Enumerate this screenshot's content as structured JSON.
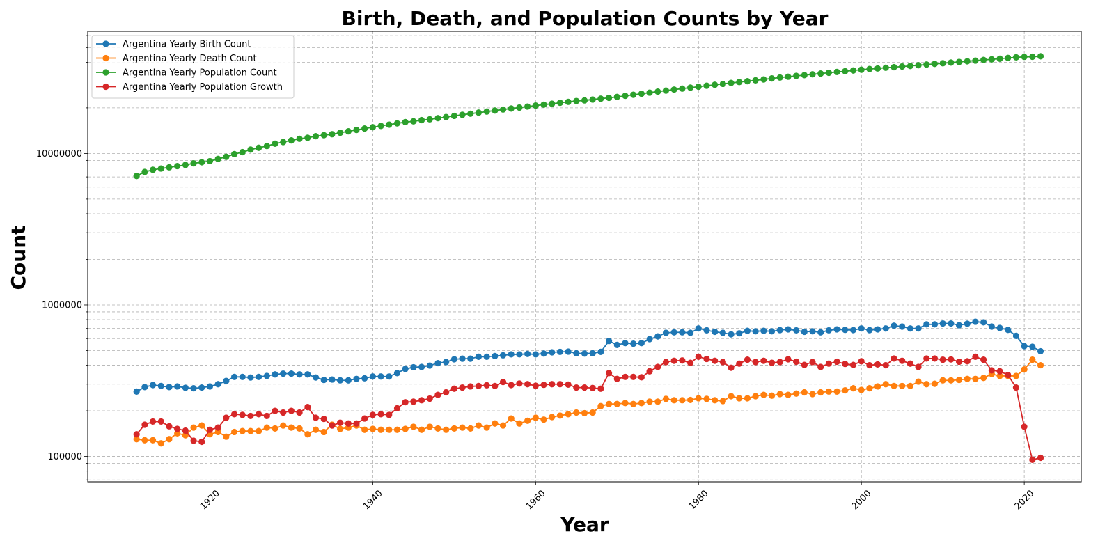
{
  "chart_data": {
    "type": "line",
    "title": "Birth, Death, and Population Counts by Year",
    "xlabel": "Year",
    "ylabel": "Count",
    "yscale": "log",
    "grid": true,
    "legend_position": "top-left",
    "xlim": [
      1905,
      2027
    ],
    "ylim": [
      68000,
      64000000
    ],
    "x_ticks": [
      1920,
      1940,
      1960,
      1980,
      2000,
      2020
    ],
    "y_ticks": [
      100000,
      1000000,
      10000000
    ],
    "y_tick_labels": [
      "100000",
      "1000000",
      "10000000"
    ],
    "x": [
      1911,
      1912,
      1913,
      1914,
      1915,
      1916,
      1917,
      1918,
      1919,
      1920,
      1921,
      1922,
      1923,
      1924,
      1925,
      1926,
      1927,
      1928,
      1929,
      1930,
      1931,
      1932,
      1933,
      1934,
      1935,
      1936,
      1937,
      1938,
      1939,
      1940,
      1941,
      1942,
      1943,
      1944,
      1945,
      1946,
      1947,
      1948,
      1949,
      1950,
      1951,
      1952,
      1953,
      1954,
      1955,
      1956,
      1957,
      1958,
      1959,
      1960,
      1961,
      1962,
      1963,
      1964,
      1965,
      1966,
      1967,
      1968,
      1969,
      1970,
      1971,
      1972,
      1973,
      1974,
      1975,
      1976,
      1977,
      1978,
      1979,
      1980,
      1981,
      1982,
      1983,
      1984,
      1985,
      1986,
      1987,
      1988,
      1989,
      1990,
      1991,
      1992,
      1993,
      1994,
      1995,
      1996,
      1997,
      1998,
      1999,
      2000,
      2001,
      2002,
      2003,
      2004,
      2005,
      2006,
      2007,
      2008,
      2009,
      2010,
      2011,
      2012,
      2013,
      2014,
      2015,
      2016,
      2017,
      2018,
      2019,
      2020,
      2021,
      2022
    ],
    "series": [
      {
        "name": "Argentina Yearly Birth Count",
        "color": "#1f77b4",
        "values": [
          268000,
          287000,
          296000,
          292000,
          287000,
          290000,
          284000,
          282000,
          285000,
          290000,
          300000,
          315000,
          335000,
          335000,
          332000,
          335000,
          340000,
          348000,
          352000,
          352000,
          348000,
          348000,
          332000,
          320000,
          322000,
          318000,
          318000,
          325000,
          328000,
          337000,
          337000,
          337000,
          355000,
          378000,
          388000,
          390000,
          398000,
          413000,
          420000,
          438000,
          442000,
          442000,
          455000,
          455000,
          460000,
          465000,
          472000,
          472000,
          475000,
          472000,
          478000,
          487000,
          490000,
          492000,
          480000,
          478000,
          480000,
          490000,
          578000,
          545000,
          560000,
          555000,
          560000,
          595000,
          620000,
          655000,
          660000,
          660000,
          655000,
          700000,
          680000,
          665000,
          655000,
          640000,
          650000,
          675000,
          670000,
          675000,
          670000,
          682000,
          690000,
          680000,
          665000,
          670000,
          660000,
          680000,
          690000,
          685000,
          683000,
          700000,
          682000,
          690000,
          700000,
          730000,
          720000,
          700000,
          700000,
          745000,
          745000,
          755000,
          755000,
          735000,
          752000,
          775000,
          768000,
          720000,
          705000,
          685000,
          625000,
          535000,
          530000,
          495000
        ]
      },
      {
        "name": "Argentina Yearly Death Count",
        "color": "#ff7f0e",
        "values": [
          130000,
          128000,
          128000,
          122000,
          130000,
          142000,
          138000,
          155000,
          160000,
          140000,
          145000,
          135000,
          145000,
          147000,
          147000,
          147000,
          155000,
          153000,
          160000,
          155000,
          153000,
          140000,
          150000,
          145000,
          162000,
          152000,
          155000,
          160000,
          150000,
          152000,
          150000,
          150000,
          150000,
          152000,
          157000,
          150000,
          157000,
          153000,
          150000,
          153000,
          155000,
          153000,
          160000,
          155000,
          165000,
          160000,
          178000,
          165000,
          172000,
          180000,
          175000,
          182000,
          186000,
          190000,
          195000,
          193000,
          195000,
          215000,
          222000,
          222000,
          225000,
          222000,
          225000,
          230000,
          230000,
          240000,
          235000,
          235000,
          236000,
          242000,
          240000,
          235000,
          232000,
          250000,
          242000,
          242000,
          250000,
          255000,
          252000,
          258000,
          255000,
          260000,
          265000,
          258000,
          265000,
          268000,
          268000,
          273000,
          282000,
          275000,
          282000,
          290000,
          300000,
          292000,
          292000,
          292000,
          312000,
          300000,
          302000,
          318000,
          318000,
          320000,
          325000,
          325000,
          330000,
          350000,
          340000,
          340000,
          340000,
          375000,
          435000,
          400000
        ]
      },
      {
        "name": "Argentina Yearly Population Count",
        "color": "#2ca02c",
        "values": [
          7100000,
          7550000,
          7800000,
          7950000,
          8100000,
          8250000,
          8400000,
          8600000,
          8750000,
          8900000,
          9200000,
          9500000,
          9900000,
          10200000,
          10600000,
          10900000,
          11200000,
          11600000,
          11900000,
          12200000,
          12500000,
          12700000,
          13000000,
          13200000,
          13400000,
          13700000,
          14000000,
          14300000,
          14600000,
          14900000,
          15200000,
          15500000,
          15800000,
          16100000,
          16300000,
          16600000,
          16800000,
          17100000,
          17400000,
          17700000,
          18000000,
          18300000,
          18600000,
          18900000,
          19200000,
          19500000,
          19800000,
          20100000,
          20400000,
          20700000,
          21000000,
          21300000,
          21600000,
          21900000,
          22200000,
          22400000,
          22700000,
          23000000,
          23300000,
          23600000,
          24000000,
          24400000,
          24800000,
          25200000,
          25600000,
          26000000,
          26400000,
          26800000,
          27200000,
          27600000,
          28000000,
          28400000,
          28800000,
          29200000,
          29600000,
          30000000,
          30400000,
          30800000,
          31300000,
          31700000,
          32100000,
          32500000,
          32900000,
          33300000,
          33700000,
          34100000,
          34500000,
          34900000,
          35300000,
          35700000,
          36100000,
          36400000,
          36800000,
          37100000,
          37500000,
          37800000,
          38200000,
          38600000,
          39000000,
          39400000,
          39800000,
          40200000,
          40600000,
          41000000,
          41400000,
          41800000,
          42200000,
          42700000,
          43100000,
          43400000,
          43500000,
          43800000
        ]
      },
      {
        "name": "Argentina Yearly Population Growth",
        "color": "#d62728",
        "values": [
          140000,
          162000,
          170000,
          170000,
          158000,
          152000,
          148000,
          127000,
          125000,
          150000,
          155000,
          180000,
          190000,
          188000,
          185000,
          190000,
          185000,
          200000,
          195000,
          200000,
          195000,
          212000,
          180000,
          177000,
          160000,
          167000,
          165000,
          165000,
          178000,
          188000,
          190000,
          188000,
          208000,
          228000,
          230000,
          235000,
          241000,
          255000,
          265000,
          280000,
          285000,
          290000,
          292000,
          295000,
          292000,
          310000,
          296000,
          303000,
          300000,
          293000,
          297000,
          300000,
          300000,
          298000,
          285000,
          285000,
          283000,
          280000,
          355000,
          325000,
          335000,
          335000,
          333000,
          365000,
          390000,
          420000,
          428000,
          430000,
          415000,
          455000,
          440000,
          428000,
          420000,
          385000,
          410000,
          435000,
          420000,
          428000,
          415000,
          420000,
          438000,
          422000,
          402000,
          420000,
          390000,
          410000,
          422000,
          408000,
          402000,
          425000,
          400000,
          405000,
          400000,
          443000,
          428000,
          410000,
          390000,
          443000,
          443000,
          435000,
          437000,
          422000,
          425000,
          455000,
          435000,
          370000,
          365000,
          345000,
          285000,
          157000,
          95000,
          98000
        ]
      }
    ]
  }
}
